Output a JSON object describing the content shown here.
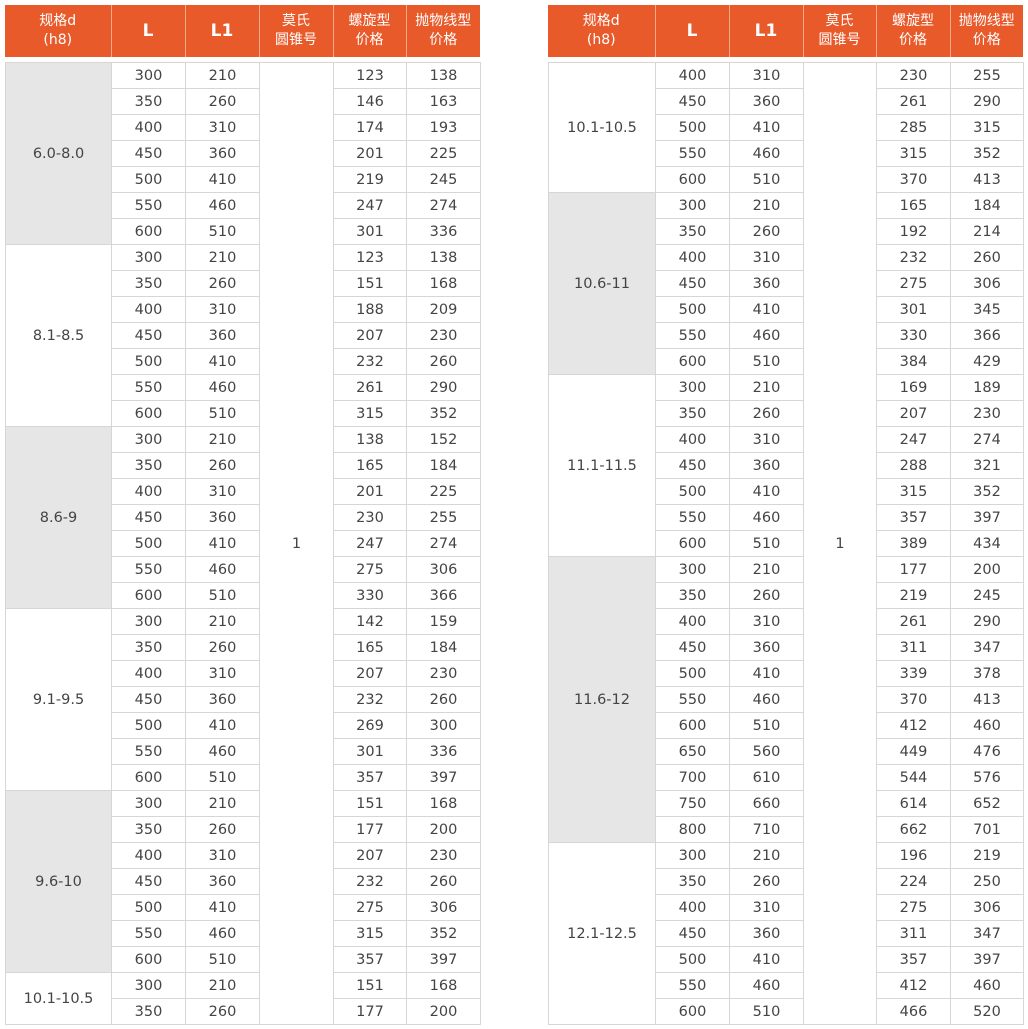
{
  "headers": [
    "规格d\n(h8)",
    "L",
    "L1",
    "莫氏\n圆锥号",
    "螺旋型\n价格",
    "抛物线型\n价格"
  ],
  "colors": {
    "header_bg": "#e95a2b",
    "group_gray": "#e6e6e6"
  },
  "tables": [
    {
      "morse": "1",
      "groups": [
        {
          "spec": "6.0-8.0",
          "shaded": true,
          "rows": [
            [
              "300",
              "210",
              "123",
              "138"
            ],
            [
              "350",
              "260",
              "146",
              "163"
            ],
            [
              "400",
              "310",
              "174",
              "193"
            ],
            [
              "450",
              "360",
              "201",
              "225"
            ],
            [
              "500",
              "410",
              "219",
              "245"
            ],
            [
              "550",
              "460",
              "247",
              "274"
            ],
            [
              "600",
              "510",
              "301",
              "336"
            ]
          ]
        },
        {
          "spec": "8.1-8.5",
          "shaded": false,
          "rows": [
            [
              "300",
              "210",
              "123",
              "138"
            ],
            [
              "350",
              "260",
              "151",
              "168"
            ],
            [
              "400",
              "310",
              "188",
              "209"
            ],
            [
              "450",
              "360",
              "207",
              "230"
            ],
            [
              "500",
              "410",
              "232",
              "260"
            ],
            [
              "550",
              "460",
              "261",
              "290"
            ],
            [
              "600",
              "510",
              "315",
              "352"
            ]
          ]
        },
        {
          "spec": "8.6-9",
          "shaded": true,
          "rows": [
            [
              "300",
              "210",
              "138",
              "152"
            ],
            [
              "350",
              "260",
              "165",
              "184"
            ],
            [
              "400",
              "310",
              "201",
              "225"
            ],
            [
              "450",
              "360",
              "230",
              "255"
            ],
            [
              "500",
              "410",
              "247",
              "274"
            ],
            [
              "550",
              "460",
              "275",
              "306"
            ],
            [
              "600",
              "510",
              "330",
              "366"
            ]
          ]
        },
        {
          "spec": "9.1-9.5",
          "shaded": false,
          "rows": [
            [
              "300",
              "210",
              "142",
              "159"
            ],
            [
              "350",
              "260",
              "165",
              "184"
            ],
            [
              "400",
              "310",
              "207",
              "230"
            ],
            [
              "450",
              "360",
              "232",
              "260"
            ],
            [
              "500",
              "410",
              "269",
              "300"
            ],
            [
              "550",
              "460",
              "301",
              "336"
            ],
            [
              "600",
              "510",
              "357",
              "397"
            ]
          ]
        },
        {
          "spec": "9.6-10",
          "shaded": true,
          "rows": [
            [
              "300",
              "210",
              "151",
              "168"
            ],
            [
              "350",
              "260",
              "177",
              "200"
            ],
            [
              "400",
              "310",
              "207",
              "230"
            ],
            [
              "450",
              "360",
              "232",
              "260"
            ],
            [
              "500",
              "410",
              "275",
              "306"
            ],
            [
              "550",
              "460",
              "315",
              "352"
            ],
            [
              "600",
              "510",
              "357",
              "397"
            ]
          ]
        },
        {
          "spec": "10.1-10.5",
          "shaded": false,
          "rows": [
            [
              "300",
              "210",
              "151",
              "168"
            ],
            [
              "350",
              "260",
              "177",
              "200"
            ]
          ]
        }
      ]
    },
    {
      "morse": "1",
      "groups": [
        {
          "spec": "10.1-10.5",
          "shaded": false,
          "rows": [
            [
              "400",
              "310",
              "230",
              "255"
            ],
            [
              "450",
              "360",
              "261",
              "290"
            ],
            [
              "500",
              "410",
              "285",
              "315"
            ],
            [
              "550",
              "460",
              "315",
              "352"
            ],
            [
              "600",
              "510",
              "370",
              "413"
            ]
          ]
        },
        {
          "spec": "10.6-11",
          "shaded": true,
          "rows": [
            [
              "300",
              "210",
              "165",
              "184"
            ],
            [
              "350",
              "260",
              "192",
              "214"
            ],
            [
              "400",
              "310",
              "232",
              "260"
            ],
            [
              "450",
              "360",
              "275",
              "306"
            ],
            [
              "500",
              "410",
              "301",
              "345"
            ],
            [
              "550",
              "460",
              "330",
              "366"
            ],
            [
              "600",
              "510",
              "384",
              "429"
            ]
          ]
        },
        {
          "spec": "11.1-11.5",
          "shaded": false,
          "rows": [
            [
              "300",
              "210",
              "169",
              "189"
            ],
            [
              "350",
              "260",
              "207",
              "230"
            ],
            [
              "400",
              "310",
              "247",
              "274"
            ],
            [
              "450",
              "360",
              "288",
              "321"
            ],
            [
              "500",
              "410",
              "315",
              "352"
            ],
            [
              "550",
              "460",
              "357",
              "397"
            ],
            [
              "600",
              "510",
              "389",
              "434"
            ]
          ]
        },
        {
          "spec": "11.6-12",
          "shaded": true,
          "rows": [
            [
              "300",
              "210",
              "177",
              "200"
            ],
            [
              "350",
              "260",
              "219",
              "245"
            ],
            [
              "400",
              "310",
              "261",
              "290"
            ],
            [
              "450",
              "360",
              "311",
              "347"
            ],
            [
              "500",
              "410",
              "339",
              "378"
            ],
            [
              "550",
              "460",
              "370",
              "413"
            ],
            [
              "600",
              "510",
              "412",
              "460"
            ],
            [
              "650",
              "560",
              "449",
              "476"
            ],
            [
              "700",
              "610",
              "544",
              "576"
            ],
            [
              "750",
              "660",
              "614",
              "652"
            ],
            [
              "800",
              "710",
              "662",
              "701"
            ]
          ]
        },
        {
          "spec": "12.1-12.5",
          "shaded": false,
          "rows": [
            [
              "300",
              "210",
              "196",
              "219"
            ],
            [
              "350",
              "260",
              "224",
              "250"
            ],
            [
              "400",
              "310",
              "275",
              "306"
            ],
            [
              "450",
              "360",
              "311",
              "347"
            ],
            [
              "500",
              "410",
              "357",
              "397"
            ],
            [
              "550",
              "460",
              "412",
              "460"
            ],
            [
              "600",
              "510",
              "466",
              "520"
            ]
          ]
        }
      ]
    }
  ]
}
